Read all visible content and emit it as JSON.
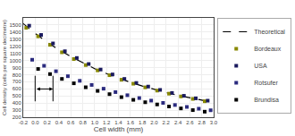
{
  "chart_data": {
    "type": "scatter",
    "xlabel": "Cell width (mm)",
    "ylabel": "Cell density (cells per square decimetre)",
    "xlim": [
      -0.2,
      3.0
    ],
    "ylim": [
      200,
      1600
    ],
    "xticks": [
      -0.2,
      {
        "value": 0.0,
        "label": "0.0"
      },
      0.2,
      0.4,
      0.6,
      0.8,
      {
        "value": 1.0,
        "label": "1.0"
      },
      1.2,
      1.4,
      1.6,
      1.8,
      {
        "value": 2.0,
        "label": "2.0"
      },
      2.2,
      2.4,
      2.6,
      2.8,
      {
        "value": 3.0,
        "label": "3.0"
      }
    ],
    "yticks": [
      200,
      300,
      400,
      500,
      600,
      700,
      800,
      900,
      1000,
      1100,
      1200,
      1300,
      1400,
      1500
    ],
    "grid": true,
    "legend": "upper right",
    "series": [
      {
        "name": "Theoretical",
        "type": "line",
        "line_style": "dashed",
        "color": "#000000",
        "x": [
          -0.2,
          0.0,
          0.2,
          0.4,
          0.6,
          0.8,
          1.0,
          1.2,
          1.4,
          1.6,
          1.8,
          2.0,
          2.2,
          2.4,
          2.6,
          2.8,
          3.0
        ],
        "values": [
          1520,
          1380,
          1260,
          1150,
          1055,
          965,
          885,
          815,
          750,
          692,
          640,
          592,
          548,
          508,
          472,
          438,
          408
        ]
      },
      {
        "name": "Bordeaux",
        "type": "scatter",
        "marker": "square",
        "color": "#888800",
        "x": [
          -0.15,
          0.05,
          0.25,
          0.45,
          0.65,
          0.85,
          1.05,
          1.25,
          1.45,
          1.65,
          1.85,
          2.05,
          2.25,
          2.45,
          2.65,
          2.85
        ],
        "values": [
          1460,
          1340,
          1220,
          1115,
          1020,
          935,
          860,
          792,
          728,
          672,
          621,
          575,
          532,
          493,
          458,
          425
        ]
      },
      {
        "name": "USA",
        "type": "scatter",
        "marker": "square",
        "color": "#1a1a5e",
        "x": [
          -0.1,
          0.1,
          0.3,
          0.5,
          0.7,
          0.9,
          1.1,
          1.3,
          1.5,
          1.7,
          1.9,
          2.1,
          2.3,
          2.5,
          2.7,
          2.9
        ],
        "values": [
          1490,
          1360,
          1240,
          1130,
          1035,
          950,
          872,
          803,
          740,
          683,
          632,
          585,
          542,
          502,
          466,
          433
        ]
      },
      {
        "name": "Rotsufer",
        "type": "scatter",
        "marker": "square",
        "color": "#2a2a7e",
        "x": [
          -0.05,
          0.15,
          0.35,
          0.55,
          0.75,
          0.95,
          1.15,
          1.35,
          1.55,
          1.75,
          1.95,
          2.15,
          2.35,
          2.55,
          2.75,
          2.95
        ],
        "values": [
          1010,
          925,
          848,
          778,
          713,
          655,
          602,
          554,
          510,
          470,
          434,
          402,
          372,
          345,
          320,
          298
        ]
      },
      {
        "name": "Brundisa",
        "type": "scatter",
        "marker": "square",
        "color": "#000000",
        "x": [
          0.05,
          0.25,
          0.45,
          0.65,
          0.85,
          1.05,
          1.25,
          1.45,
          1.65,
          1.85,
          2.05,
          2.25,
          2.45,
          2.65,
          2.85
        ],
        "values": [
          880,
          808,
          740,
          678,
          622,
          571,
          525,
          483,
          445,
          411,
          380,
          351,
          324,
          300,
          278
        ]
      }
    ],
    "arrow": {
      "x": [
        0.0,
        0.3
      ],
      "y": 598
    },
    "vlines": [
      {
        "x": 0.0,
        "y": [
          424,
          784
        ]
      },
      {
        "x": 0.3,
        "y": [
          424,
          784
        ]
      }
    ]
  }
}
